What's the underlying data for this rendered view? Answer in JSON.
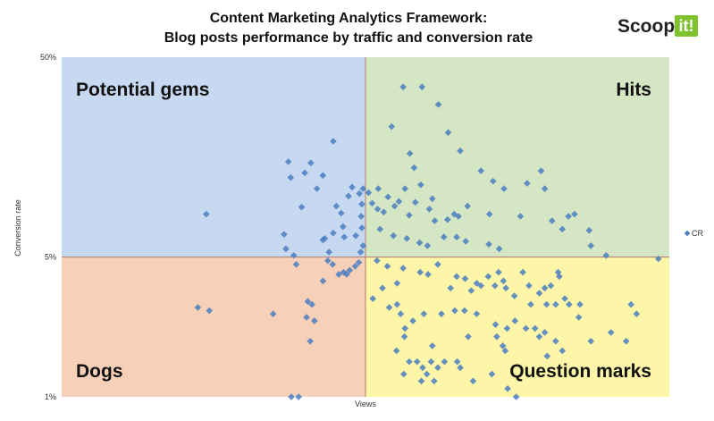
{
  "logo": {
    "text": "Scoop.",
    "badge": "it!"
  },
  "chart_data": {
    "type": "scatter",
    "title": "Content Marketing Analytics Framework:",
    "subtitle": "Blog posts performance by traffic and conversion rate",
    "xlabel": "Views",
    "ylabel": "Conversion rate",
    "xlim": [
      0,
      100
    ],
    "y_scale": "log",
    "ylim": [
      1,
      50
    ],
    "y_ticks": [
      "1%",
      "5%",
      "50%"
    ],
    "y_tick_values": [
      1,
      5,
      50
    ],
    "x_divider": 50,
    "y_divider": 5,
    "grid": false,
    "legend": {
      "position": "right",
      "entries": [
        "CR"
      ]
    },
    "marker_color": "#4a7dbf",
    "quadrants": [
      {
        "name": "top-left",
        "label": "Potential gems",
        "color": "#c6d9f1"
      },
      {
        "name": "top-right",
        "label": "Hits",
        "color": "#d4e6c4"
      },
      {
        "name": "bottom-left",
        "label": "Dogs",
        "color": "#f6d0b8"
      },
      {
        "name": "bottom-right",
        "label": "Question marks",
        "color": "#fdf6a9"
      }
    ],
    "series": [
      {
        "name": "CR",
        "points": [
          [
            23.8,
            8.2
          ],
          [
            44.7,
            19.0
          ],
          [
            37.3,
            15.0
          ],
          [
            37.7,
            12.5
          ],
          [
            40.0,
            13.2
          ],
          [
            41.0,
            14.8
          ],
          [
            42.0,
            11.0
          ],
          [
            39.5,
            8.9
          ],
          [
            43.0,
            12.8
          ],
          [
            45.2,
            9.0
          ],
          [
            44.7,
            6.6
          ],
          [
            43.3,
            6.2
          ],
          [
            44.0,
            5.3
          ],
          [
            43.0,
            6.1
          ],
          [
            46.3,
            7.1
          ],
          [
            46.5,
            6.3
          ],
          [
            48.4,
            6.4
          ],
          [
            46.0,
            8.3
          ],
          [
            47.8,
            11.2
          ],
          [
            49.0,
            10.4
          ],
          [
            49.6,
            11.0
          ],
          [
            49.4,
            9.2
          ],
          [
            47.2,
            10.1
          ],
          [
            49.3,
            8.0
          ],
          [
            49.4,
            7.0
          ],
          [
            49.6,
            5.7
          ],
          [
            49.2,
            5.3
          ],
          [
            48.9,
            4.7
          ],
          [
            48.3,
            4.5
          ],
          [
            47.4,
            4.3
          ],
          [
            46.9,
            4.1
          ],
          [
            46.4,
            4.2
          ],
          [
            45.6,
            4.1
          ],
          [
            44.6,
            4.6
          ],
          [
            43.8,
            4.8
          ],
          [
            38.2,
            5.1
          ],
          [
            38.6,
            4.6
          ],
          [
            36.6,
            6.5
          ],
          [
            36.9,
            5.5
          ],
          [
            43.0,
            3.8
          ],
          [
            40.5,
            3.0
          ],
          [
            41.2,
            2.9
          ],
          [
            40.3,
            2.5
          ],
          [
            41.6,
            2.4
          ],
          [
            40.9,
            1.9
          ],
          [
            34.8,
            2.6
          ],
          [
            37.8,
            1.0
          ],
          [
            39.0,
            1.0
          ],
          [
            22.4,
            2.8
          ],
          [
            24.3,
            2.7
          ],
          [
            56.2,
            35.5
          ],
          [
            59.3,
            35.5
          ],
          [
            54.3,
            22.5
          ],
          [
            62.0,
            29.0
          ],
          [
            63.6,
            21.0
          ],
          [
            65.6,
            17.0
          ],
          [
            57.3,
            16.5
          ],
          [
            58.0,
            14.0
          ],
          [
            69.0,
            13.5
          ],
          [
            78.9,
            13.5
          ],
          [
            72.8,
            11.0
          ],
          [
            71.0,
            12.0
          ],
          [
            76.6,
            11.7
          ],
          [
            79.5,
            11.0
          ],
          [
            59.1,
            11.5
          ],
          [
            56.5,
            11.0
          ],
          [
            52.1,
            11.0
          ],
          [
            53.7,
            10.0
          ],
          [
            55.5,
            9.5
          ],
          [
            54.8,
            9.0
          ],
          [
            58.2,
            9.4
          ],
          [
            61.0,
            9.8
          ],
          [
            60.5,
            8.7
          ],
          [
            52.0,
            8.7
          ],
          [
            53.0,
            8.4
          ],
          [
            57.2,
            8.1
          ],
          [
            61.4,
            7.6
          ],
          [
            63.5,
            7.7
          ],
          [
            64.6,
            8.2
          ],
          [
            65.3,
            8.0
          ],
          [
            66.8,
            9.0
          ],
          [
            70.4,
            8.2
          ],
          [
            75.5,
            8.0
          ],
          [
            84.4,
            8.2
          ],
          [
            83.4,
            8.0
          ],
          [
            50.5,
            10.5
          ],
          [
            51.1,
            9.3
          ],
          [
            52.4,
            6.9
          ],
          [
            54.6,
            6.4
          ],
          [
            56.8,
            6.2
          ],
          [
            58.9,
            5.9
          ],
          [
            60.2,
            5.7
          ],
          [
            62.9,
            6.3
          ],
          [
            65.0,
            6.3
          ],
          [
            66.5,
            6.0
          ],
          [
            70.3,
            5.8
          ],
          [
            72.0,
            5.5
          ],
          [
            80.7,
            7.6
          ],
          [
            82.4,
            6.9
          ],
          [
            87.1,
            5.7
          ],
          [
            86.8,
            6.8
          ],
          [
            89.6,
            5.1
          ],
          [
            51.9,
            4.8
          ],
          [
            53.6,
            4.5
          ],
          [
            55.2,
            3.7
          ],
          [
            56.2,
            4.4
          ],
          [
            59.0,
            4.2
          ],
          [
            60.3,
            4.1
          ],
          [
            61.9,
            4.6
          ],
          [
            64.0,
            3.5
          ],
          [
            65.0,
            4.0
          ],
          [
            66.4,
            3.9
          ],
          [
            67.4,
            3.4
          ],
          [
            68.3,
            3.7
          ],
          [
            69.0,
            3.6
          ],
          [
            70.2,
            4.0
          ],
          [
            71.3,
            3.6
          ],
          [
            71.9,
            4.2
          ],
          [
            72.7,
            3.8
          ],
          [
            73.1,
            3.5
          ],
          [
            74.5,
            3.2
          ],
          [
            75.9,
            4.2
          ],
          [
            76.9,
            3.6
          ],
          [
            78.6,
            3.3
          ],
          [
            79.5,
            3.5
          ],
          [
            80.5,
            3.6
          ],
          [
            77.2,
            2.9
          ],
          [
            79.8,
            2.9
          ],
          [
            81.3,
            2.9
          ],
          [
            81.9,
            4.0
          ],
          [
            82.8,
            3.1
          ],
          [
            83.5,
            2.9
          ],
          [
            85.3,
            2.9
          ],
          [
            81.7,
            4.2
          ],
          [
            93.7,
            2.9
          ],
          [
            94.6,
            2.6
          ],
          [
            98.2,
            4.9
          ],
          [
            51.2,
            3.1
          ],
          [
            52.8,
            3.5
          ],
          [
            53.9,
            2.8
          ],
          [
            55.2,
            2.9
          ],
          [
            55.8,
            2.6
          ],
          [
            56.5,
            2.2
          ],
          [
            57.8,
            2.4
          ],
          [
            59.6,
            2.6
          ],
          [
            62.5,
            2.6
          ],
          [
            64.7,
            2.7
          ],
          [
            66.3,
            2.7
          ],
          [
            68.3,
            2.6
          ],
          [
            71.4,
            2.3
          ],
          [
            73.3,
            2.2
          ],
          [
            74.6,
            2.4
          ],
          [
            76.4,
            2.2
          ],
          [
            77.9,
            2.2
          ],
          [
            78.6,
            2.0
          ],
          [
            79.5,
            2.1
          ],
          [
            81.3,
            1.9
          ],
          [
            82.4,
            1.7
          ],
          [
            85.1,
            2.5
          ],
          [
            87.1,
            1.9
          ],
          [
            90.4,
            2.1
          ],
          [
            92.9,
            1.9
          ],
          [
            55.1,
            1.7
          ],
          [
            56.4,
            2.0
          ],
          [
            61.0,
            1.8
          ],
          [
            61.9,
            1.4
          ],
          [
            63.0,
            1.5
          ],
          [
            66.9,
            2.0
          ],
          [
            71.6,
            2.0
          ],
          [
            72.6,
            1.8
          ],
          [
            73.0,
            1.7
          ],
          [
            79.9,
            1.6
          ],
          [
            56.3,
            1.3
          ],
          [
            57.2,
            1.5
          ],
          [
            58.5,
            1.5
          ],
          [
            59.2,
            1.2
          ],
          [
            59.4,
            1.4
          ],
          [
            60.1,
            1.3
          ],
          [
            60.8,
            1.5
          ],
          [
            61.3,
            1.2
          ],
          [
            65.1,
            1.5
          ],
          [
            65.6,
            1.4
          ],
          [
            67.7,
            1.2
          ],
          [
            70.8,
            1.3
          ],
          [
            73.4,
            1.1
          ],
          [
            74.8,
            1.0
          ]
        ]
      }
    ]
  }
}
